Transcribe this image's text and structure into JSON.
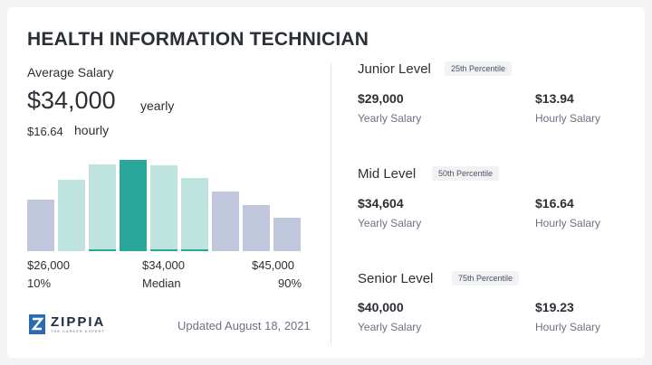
{
  "title": "HEALTH INFORMATION TECHNICIAN",
  "average": {
    "label": "Average Salary",
    "salary": "$34,000",
    "period": "yearly",
    "hourly_value": "$16.64",
    "hourly_label": "hourly"
  },
  "histogram": {
    "bars": [
      {
        "level": 0.52,
        "color": "#c0c6db",
        "tick": false
      },
      {
        "level": 0.72,
        "color": "#bfe3df",
        "tick": false
      },
      {
        "level": 0.87,
        "color": "#bfe3df",
        "tick": true
      },
      {
        "level": 0.92,
        "color": "#2aa69a",
        "tick": false
      },
      {
        "level": 0.86,
        "color": "#bfe3df",
        "tick": true
      },
      {
        "level": 0.74,
        "color": "#bfe3df",
        "tick": true
      },
      {
        "level": 0.6,
        "color": "#c0c6db",
        "tick": false
      },
      {
        "level": 0.46,
        "color": "#c0c6db",
        "tick": false
      },
      {
        "level": 0.34,
        "color": "#c0c6db",
        "tick": false
      }
    ],
    "low_value": "$26,000",
    "low_pct": "10%",
    "mid_value": "$34,000",
    "mid_label": "Median",
    "high_value": "$45,000",
    "high_pct": "90%"
  },
  "logo": {
    "name": "ZIPPIA",
    "tagline": "THE CAREER EXPERT"
  },
  "updated": "Updated August 18, 2021",
  "levels": [
    {
      "name": "Junior Level",
      "percentile": "25th Percentile",
      "yearly": "$29,000",
      "yearly_label": "Yearly Salary",
      "hourly": "$13.94",
      "hourly_label": "Hourly Salary"
    },
    {
      "name": "Mid Level",
      "percentile": "50th Percentile",
      "yearly": "$34,604",
      "yearly_label": "Yearly Salary",
      "hourly": "$16.64",
      "hourly_label": "Hourly Salary"
    },
    {
      "name": "Senior Level",
      "percentile": "75th Percentile",
      "yearly": "$40,000",
      "yearly_label": "Yearly Salary",
      "hourly": "$19.23",
      "hourly_label": "Hourly Salary"
    }
  ]
}
